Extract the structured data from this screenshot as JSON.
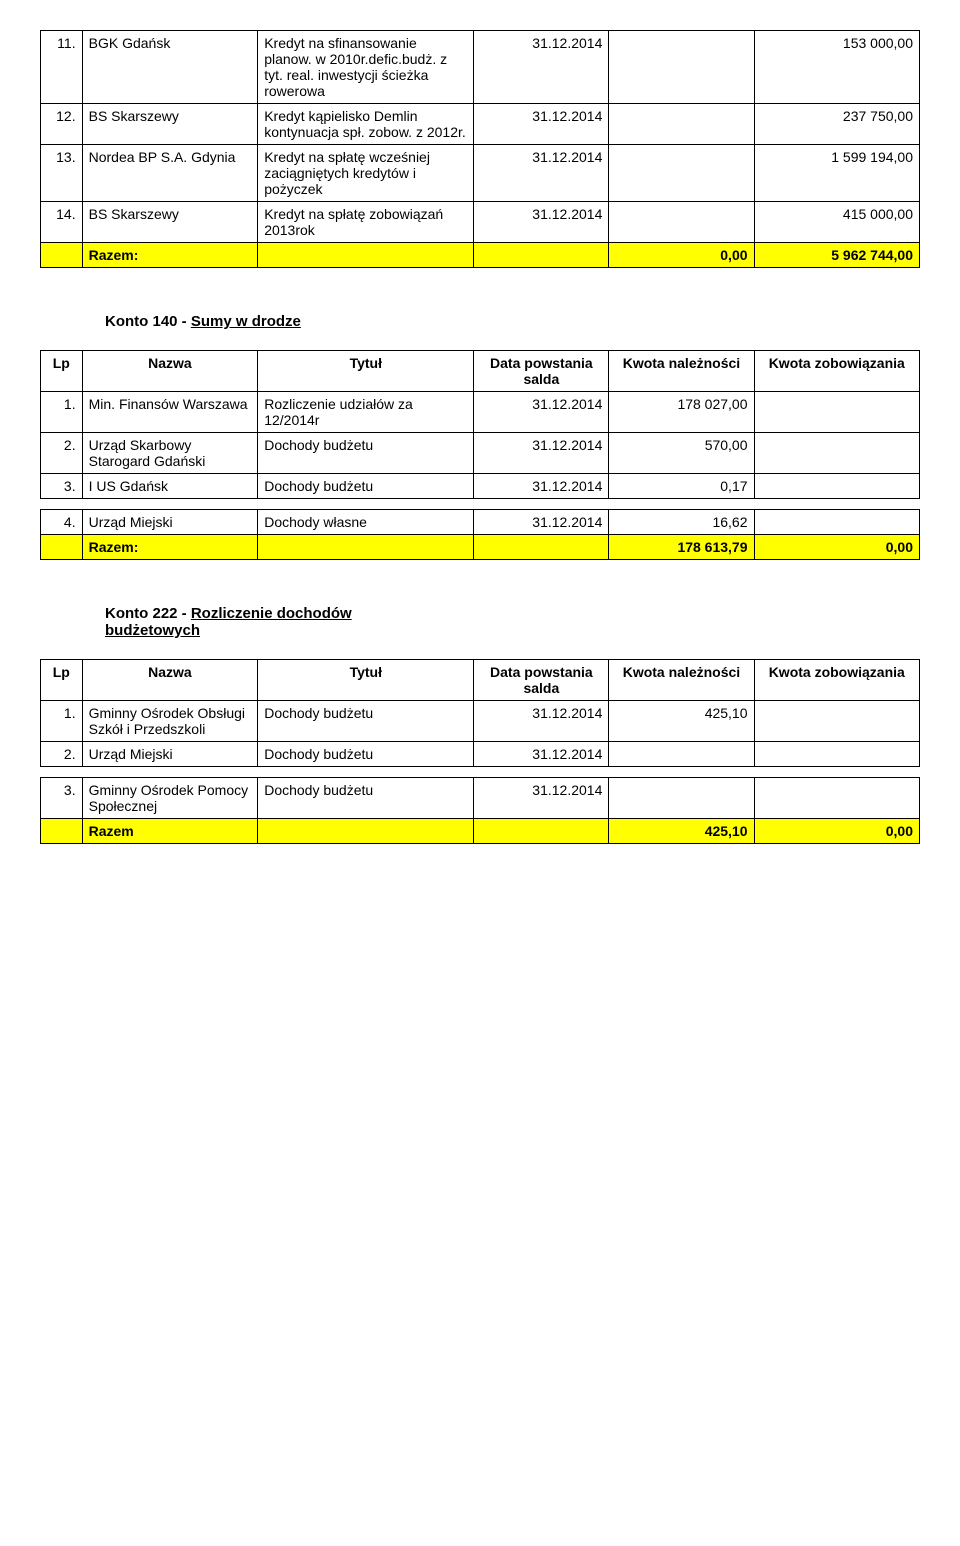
{
  "table1": {
    "rows": [
      {
        "lp": "11.",
        "nazwa": "BGK Gdańsk",
        "tytul": "Kredyt na sfinansowanie planow. w 2010r.defic.budż. z tyt. real. inwestycji ścieżka rowerowa",
        "data": "31.12.2014",
        "k1": "",
        "k2": "153 000,00"
      },
      {
        "lp": "12.",
        "nazwa": "BS Skarszewy",
        "tytul": "Kredyt kąpielisko Demlin kontynuacja spł. zobow. z 2012r.",
        "data": "31.12.2014",
        "k1": "",
        "k2": "237 750,00"
      },
      {
        "lp": "13.",
        "nazwa": "Nordea BP S.A. Gdynia",
        "tytul": "Kredyt na spłatę wcześniej zaciągniętych kredytów i pożyczek",
        "data": "31.12.2014",
        "k1": "",
        "k2": "1 599 194,00"
      },
      {
        "lp": "14.",
        "nazwa": "BS Skarszewy",
        "tytul": "Kredyt na spłatę zobowiązań 2013rok",
        "data": "31.12.2014",
        "k1": "",
        "k2": "415 000,00"
      }
    ],
    "sum_label": "Razem:",
    "sum_k1": "0,00",
    "sum_k2": "5 962 744,00"
  },
  "section2_title_a": "Konto 140 - ",
  "section2_title_b": "Sumy w drodze",
  "hdr": {
    "lp": "Lp",
    "nazwa": "Nazwa",
    "tytul": "Tytuł",
    "data": "Data powstania salda",
    "k1": "Kwota należności",
    "k2": "Kwota zobowiązania"
  },
  "table2": {
    "rows": [
      {
        "lp": "1.",
        "nazwa": "Min. Finansów Warszawa",
        "tytul": "Rozliczenie  udziałów za 12/2014r",
        "data": "31.12.2014",
        "k1": "178 027,00",
        "k2": ""
      },
      {
        "lp": "2.",
        "nazwa": "Urząd Skarbowy Starogard Gdański",
        "tytul": "Dochody budżetu",
        "data": "31.12.2014",
        "k1": "570,00",
        "k2": ""
      },
      {
        "lp": "3.",
        "nazwa": "I US Gdańsk",
        "tytul": "Dochody budżetu",
        "data": "31.12.2014",
        "k1": "0,17",
        "k2": ""
      },
      {
        "lp": "4.",
        "nazwa": "Urząd Miejski",
        "tytul": "Dochody  własne",
        "data": "31.12.2014",
        "k1": "16,62",
        "k2": ""
      }
    ],
    "sum_label": "Razem:",
    "sum_k1": "178 613,79",
    "sum_k2": "0,00"
  },
  "section3_title_a": "Konto 222 - ",
  "section3_title_b": "Rozliczenie dochodów budżetowych",
  "table3": {
    "rows": [
      {
        "lp": "1.",
        "nazwa": "Gminny Ośrodek Obsługi  Szkół  i Przedszkoli",
        "tytul": "Dochody budżetu",
        "data": "31.12.2014",
        "k1": "425,10",
        "k2": ""
      },
      {
        "lp": "2.",
        "nazwa": "Urząd Miejski",
        "tytul": "Dochody budżetu",
        "data": "31.12.2014",
        "k1": "",
        "k2": ""
      },
      {
        "lp": "3.",
        "nazwa": "Gminny Ośrodek Pomocy Społecznej",
        "tytul": "Dochody  budżetu",
        "data": "31.12.2014",
        "k1": "",
        "k2": ""
      }
    ],
    "sum_label": "Razem",
    "sum_k1": "425,10",
    "sum_k2": "0,00"
  }
}
